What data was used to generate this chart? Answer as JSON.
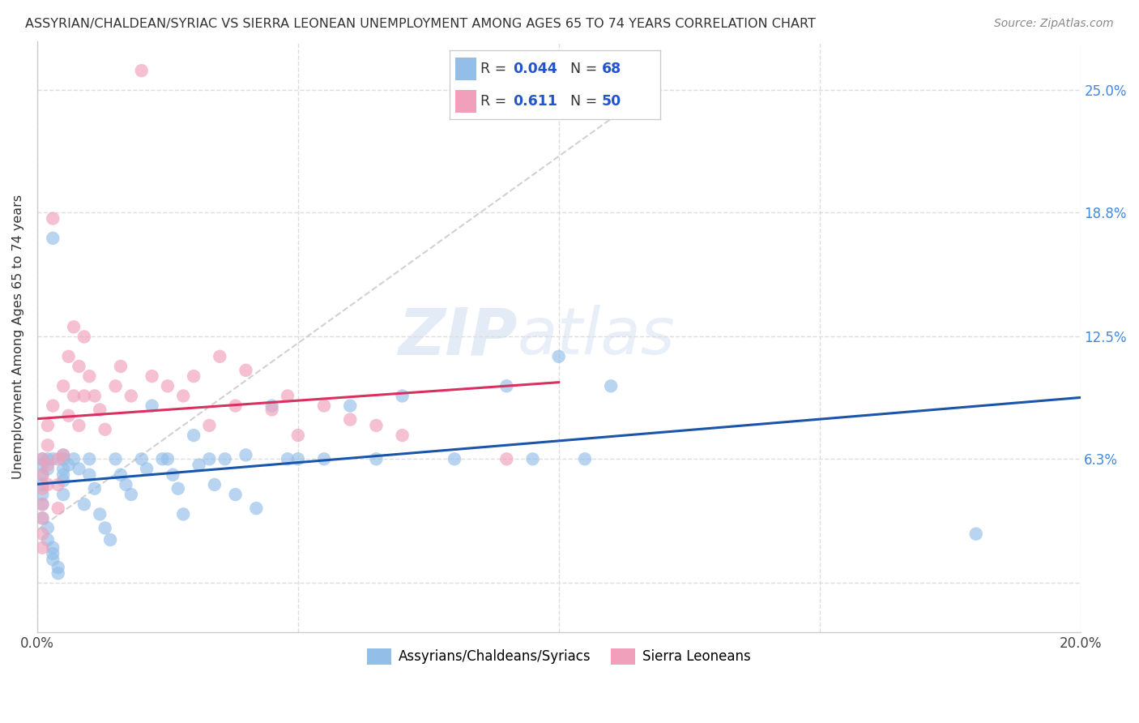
{
  "title": "ASSYRIAN/CHALDEAN/SYRIAC VS SIERRA LEONEAN UNEMPLOYMENT AMONG AGES 65 TO 74 YEARS CORRELATION CHART",
  "source": "Source: ZipAtlas.com",
  "ylabel": "Unemployment Among Ages 65 to 74 years",
  "xlim": [
    0.0,
    0.2
  ],
  "ylim": [
    -0.025,
    0.275
  ],
  "xticks": [
    0.0,
    0.05,
    0.1,
    0.15,
    0.2
  ],
  "xticklabels": [
    "0.0%",
    "",
    "",
    "",
    "20.0%"
  ],
  "ytick_positions": [
    0.0,
    0.063,
    0.125,
    0.188,
    0.25
  ],
  "ytick_labels": [
    "",
    "6.3%",
    "12.5%",
    "18.8%",
    "25.0%"
  ],
  "blue_color": "#92BEE8",
  "pink_color": "#F0A0BA",
  "blue_line_color": "#1A55AA",
  "pink_line_color": "#D93060",
  "dashed_line_color": "#CCCCCC",
  "R_blue": 0.044,
  "N_blue": 68,
  "R_pink": 0.611,
  "N_pink": 50,
  "legend_label_blue": "Assyrians/Chaldeans/Syriacs",
  "legend_label_pink": "Sierra Leoneans",
  "watermark_zip": "ZIP",
  "watermark_atlas": "atlas",
  "blue_scatter_x": [
    0.003,
    0.003,
    0.005,
    0.005,
    0.005,
    0.005,
    0.005,
    0.005,
    0.002,
    0.002,
    0.001,
    0.001,
    0.001,
    0.001,
    0.001,
    0.001,
    0.001,
    0.002,
    0.002,
    0.003,
    0.003,
    0.003,
    0.004,
    0.004,
    0.006,
    0.007,
    0.008,
    0.009,
    0.01,
    0.01,
    0.011,
    0.012,
    0.013,
    0.014,
    0.015,
    0.016,
    0.017,
    0.018,
    0.02,
    0.021,
    0.022,
    0.024,
    0.025,
    0.026,
    0.027,
    0.028,
    0.03,
    0.031,
    0.033,
    0.034,
    0.036,
    0.038,
    0.04,
    0.042,
    0.045,
    0.048,
    0.05,
    0.055,
    0.06,
    0.065,
    0.07,
    0.08,
    0.09,
    0.095,
    0.1,
    0.105,
    0.11,
    0.18
  ],
  "blue_scatter_y": [
    0.175,
    0.063,
    0.065,
    0.055,
    0.063,
    0.058,
    0.052,
    0.045,
    0.063,
    0.058,
    0.063,
    0.06,
    0.055,
    0.05,
    0.045,
    0.04,
    0.033,
    0.028,
    0.022,
    0.018,
    0.015,
    0.012,
    0.008,
    0.005,
    0.06,
    0.063,
    0.058,
    0.04,
    0.063,
    0.055,
    0.048,
    0.035,
    0.028,
    0.022,
    0.063,
    0.055,
    0.05,
    0.045,
    0.063,
    0.058,
    0.09,
    0.063,
    0.063,
    0.055,
    0.048,
    0.035,
    0.075,
    0.06,
    0.063,
    0.05,
    0.063,
    0.045,
    0.065,
    0.038,
    0.09,
    0.063,
    0.063,
    0.063,
    0.09,
    0.063,
    0.095,
    0.063,
    0.1,
    0.063,
    0.115,
    0.063,
    0.1,
    0.025
  ],
  "pink_scatter_x": [
    0.001,
    0.001,
    0.001,
    0.001,
    0.001,
    0.001,
    0.001,
    0.002,
    0.002,
    0.002,
    0.002,
    0.003,
    0.003,
    0.004,
    0.004,
    0.004,
    0.005,
    0.005,
    0.006,
    0.006,
    0.007,
    0.007,
    0.008,
    0.008,
    0.009,
    0.009,
    0.01,
    0.011,
    0.012,
    0.013,
    0.015,
    0.016,
    0.018,
    0.02,
    0.022,
    0.025,
    0.028,
    0.03,
    0.033,
    0.035,
    0.038,
    0.04,
    0.045,
    0.048,
    0.05,
    0.055,
    0.06,
    0.065,
    0.07,
    0.09
  ],
  "pink_scatter_y": [
    0.063,
    0.055,
    0.048,
    0.04,
    0.033,
    0.025,
    0.018,
    0.08,
    0.07,
    0.06,
    0.05,
    0.185,
    0.09,
    0.063,
    0.05,
    0.038,
    0.1,
    0.065,
    0.115,
    0.085,
    0.13,
    0.095,
    0.11,
    0.08,
    0.125,
    0.095,
    0.105,
    0.095,
    0.088,
    0.078,
    0.1,
    0.11,
    0.095,
    0.26,
    0.105,
    0.1,
    0.095,
    0.105,
    0.08,
    0.115,
    0.09,
    0.108,
    0.088,
    0.095,
    0.075,
    0.09,
    0.083,
    0.08,
    0.075,
    0.063
  ]
}
